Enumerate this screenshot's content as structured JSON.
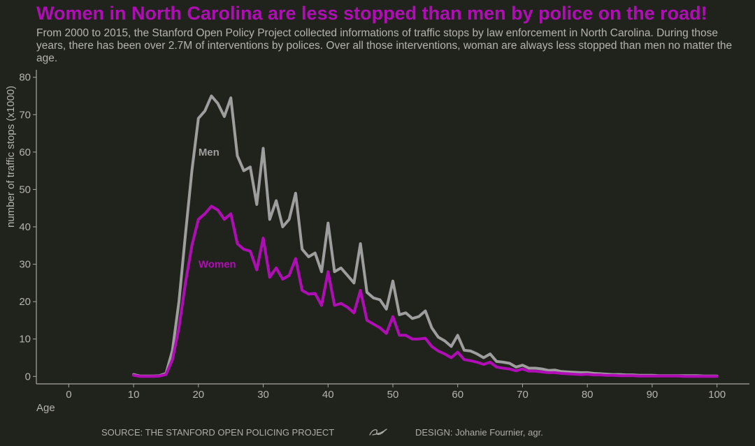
{
  "title": "Women in North Carolina are less stopped than men by police on the road!",
  "subtitle": "From 2000 to 2015, the Stanford Open Policy Project collected informations of traffic stops by law enforcement in North Carolina. During those years, there has been over 2.7M of interventions by polices. Over all those interventions, woman are always less stopped than men no matter the age.",
  "footer": {
    "source": "SOURCE: THE STANFORD OPEN POLICING PROJECT",
    "design": "DESIGN: Johanie Fournier, agr.",
    "icon": "signature-swirl-icon"
  },
  "colors": {
    "background": "#20231b",
    "men": "#9e9e9e",
    "women": "#b10db6",
    "text": "#b4b4ae"
  },
  "chart_data": {
    "type": "line",
    "xlabel": "Age",
    "ylabel": "number of traffic stops (x1000)",
    "xlim": [
      -5,
      105
    ],
    "ylim": [
      -2,
      82
    ],
    "xticks": [
      0,
      10,
      20,
      30,
      40,
      50,
      60,
      70,
      80,
      90,
      100
    ],
    "yticks": [
      0,
      10,
      20,
      30,
      40,
      50,
      60,
      70,
      80
    ],
    "grid": false,
    "legend": "direct labels on lines",
    "x": [
      10,
      11,
      12,
      13,
      14,
      15,
      16,
      17,
      18,
      19,
      20,
      21,
      22,
      23,
      24,
      25,
      26,
      27,
      28,
      29,
      30,
      31,
      32,
      33,
      34,
      35,
      36,
      37,
      38,
      39,
      40,
      41,
      42,
      43,
      44,
      45,
      46,
      47,
      48,
      49,
      50,
      51,
      52,
      53,
      54,
      55,
      56,
      57,
      58,
      59,
      60,
      61,
      62,
      63,
      64,
      65,
      66,
      67,
      68,
      69,
      70,
      71,
      72,
      73,
      74,
      75,
      76,
      77,
      78,
      79,
      80,
      81,
      82,
      83,
      84,
      85,
      86,
      87,
      88,
      89,
      90,
      91,
      92,
      93,
      94,
      95,
      96,
      97,
      98,
      99,
      100
    ],
    "series": [
      {
        "name": "Men",
        "label_at": [
          20,
          60
        ],
        "values": [
          0.5,
          0.1,
          0.1,
          0.1,
          0.2,
          0.8,
          7,
          20,
          38,
          55,
          69,
          71,
          75,
          73,
          69.5,
          74.5,
          59,
          55,
          56,
          46,
          61,
          42,
          47,
          40,
          42,
          49,
          34,
          32,
          33,
          28,
          41,
          28,
          29,
          27,
          25,
          35.5,
          22.5,
          21,
          20.5,
          18,
          25.5,
          16.5,
          17,
          15.5,
          16,
          17.5,
          13,
          10.5,
          9.5,
          8,
          11,
          7,
          6.8,
          6,
          5,
          6,
          4,
          3.8,
          3.5,
          2.5,
          3,
          2.2,
          2.2,
          2,
          1.6,
          1.7,
          1.3,
          1.2,
          1.1,
          1,
          1,
          0.8,
          0.7,
          0.6,
          0.5,
          0.5,
          0.4,
          0.4,
          0.3,
          0.3,
          0.3,
          0.2,
          0.2,
          0.2,
          0.2,
          0.2,
          0.2,
          0.2,
          0.1,
          0.1,
          0.1
        ]
      },
      {
        "name": "Women",
        "label_at": [
          20,
          30
        ],
        "values": [
          0.3,
          0,
          0,
          0,
          0.1,
          0.5,
          4.5,
          13,
          25,
          35,
          42,
          43.5,
          45.5,
          44.5,
          42,
          43.5,
          35.5,
          34,
          33.5,
          28.5,
          37,
          26.5,
          29,
          26,
          27,
          31.5,
          23,
          22,
          22.2,
          19,
          28,
          19,
          19.5,
          18.5,
          17,
          23,
          15,
          14,
          13,
          11.5,
          16,
          11,
          11,
          10,
          10,
          10.2,
          8,
          6.8,
          6,
          5,
          6.5,
          4.5,
          4.2,
          3.8,
          3.2,
          3.8,
          2.5,
          2.2,
          2,
          1.5,
          2,
          1.4,
          1.4,
          1.2,
          1,
          1,
          0.8,
          0.7,
          0.6,
          0.5,
          0.6,
          0.4,
          0.4,
          0.3,
          0.3,
          0.2,
          0.2,
          0.2,
          0.1,
          0.1,
          0.1,
          0.1,
          0.1,
          0.1,
          0.1,
          0,
          0,
          0,
          0,
          0,
          0
        ]
      }
    ]
  }
}
